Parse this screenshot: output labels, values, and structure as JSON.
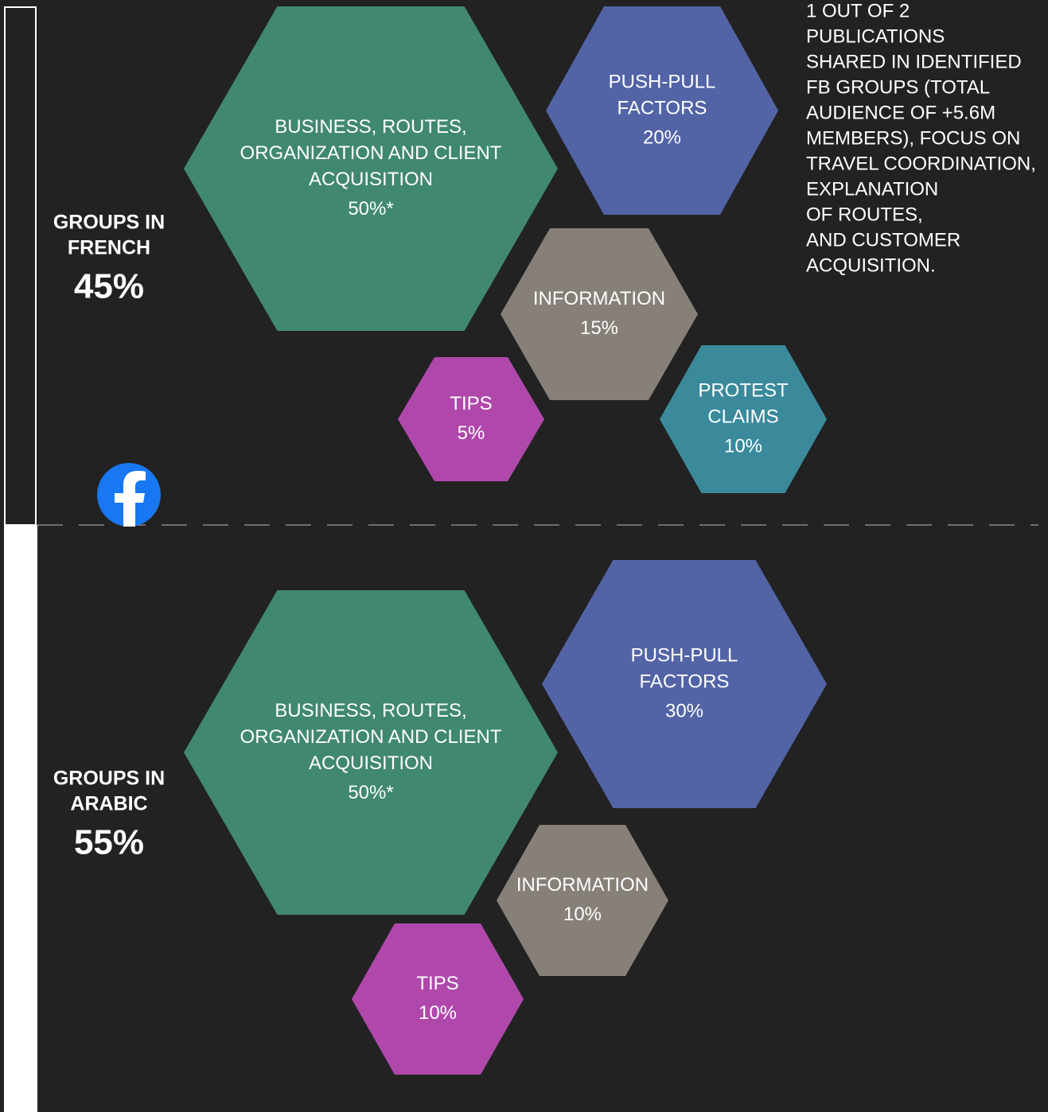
{
  "sections": [
    {
      "label_lines": [
        "GROUPS IN",
        "FRENCH"
      ],
      "share": "45%",
      "hexagons": [
        {
          "label_lines": [
            "BUSINESS, ROUTES,",
            "ORGANIZATION AND CLIENT",
            "ACQUISITION"
          ],
          "value": "50%*",
          "color": "#418871"
        },
        {
          "label_lines": [
            "PUSH-PULL",
            "FACTORS"
          ],
          "value": "20%",
          "color": "#5264a6"
        },
        {
          "label_lines": [
            "INFORMATION"
          ],
          "value": "15%",
          "color": "#878079"
        },
        {
          "label_lines": [
            "TIPS"
          ],
          "value": "5%",
          "color": "#b048ac"
        },
        {
          "label_lines": [
            "PROTEST",
            "CLAIMS"
          ],
          "value": "10%",
          "color": "#3a8a9c"
        }
      ]
    },
    {
      "label_lines": [
        "GROUPS IN",
        "ARABIC"
      ],
      "share": "55%",
      "hexagons": [
        {
          "label_lines": [
            "BUSINESS, ROUTES,",
            "ORGANIZATION AND CLIENT",
            "ACQUISITION"
          ],
          "value": "50%*",
          "color": "#418871"
        },
        {
          "label_lines": [
            "PUSH-PULL",
            "FACTORS"
          ],
          "value": "30%",
          "color": "#5264a6"
        },
        {
          "label_lines": [
            "INFORMATION"
          ],
          "value": "10%",
          "color": "#878079"
        },
        {
          "label_lines": [
            "TIPS"
          ],
          "value": "10%",
          "color": "#b048ac"
        }
      ]
    }
  ],
  "note_lines": [
    "1 OUT OF 2",
    "PUBLICATIONS",
    "SHARED IN IDENTIFIED",
    "FB GROUPS (TOTAL",
    "AUDIENCE OF +5.6M",
    "MEMBERS), FOCUS ON",
    "TRAVEL COORDINATION,",
    "EXPLANATION",
    "OF ROUTES,",
    "AND CUSTOMER",
    "ACQUISITION."
  ]
}
